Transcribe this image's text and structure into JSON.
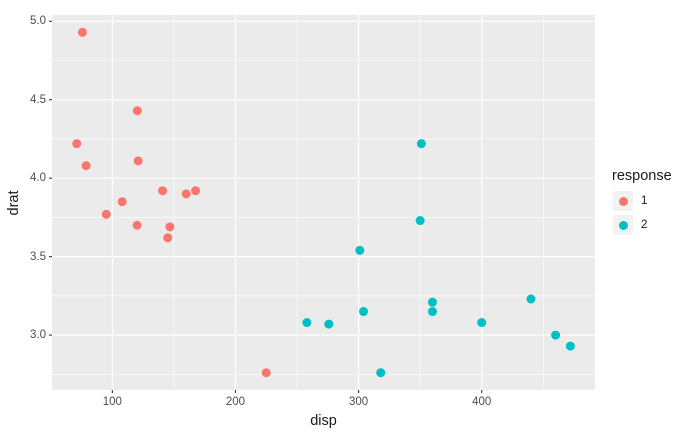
{
  "chart_data": {
    "type": "scatter",
    "title": "",
    "xlabel": "disp",
    "ylabel": "drat",
    "xlim": [
      51,
      492
    ],
    "ylim": [
      2.65,
      5.04
    ],
    "grid": true,
    "x_ticks": [
      {
        "value": 100,
        "label": "100"
      },
      {
        "value": 200,
        "label": "200"
      },
      {
        "value": 300,
        "label": "300"
      },
      {
        "value": 400,
        "label": "400"
      }
    ],
    "y_ticks": [
      {
        "value": 3.0,
        "label": "3.0"
      },
      {
        "value": 3.5,
        "label": "3.5"
      },
      {
        "value": 4.0,
        "label": "4.0"
      },
      {
        "value": 4.5,
        "label": "4.5"
      },
      {
        "value": 5.0,
        "label": "5.0"
      }
    ],
    "x_minor_ticks": [
      150,
      250,
      350,
      450
    ],
    "y_minor_ticks": [
      2.75,
      3.25,
      3.75,
      4.25,
      4.75
    ],
    "legend": {
      "title": "response",
      "position": "right",
      "entries": [
        {
          "label": "1",
          "color": "#F8766D"
        },
        {
          "label": "2",
          "color": "#00BFC4"
        }
      ]
    },
    "series": [
      {
        "name": "1",
        "color": "#F8766D",
        "points": [
          [
            71.1,
            4.22
          ],
          [
            75.7,
            4.93
          ],
          [
            78.7,
            4.08
          ],
          [
            95.1,
            3.77
          ],
          [
            108,
            3.85
          ],
          [
            120.1,
            3.7
          ],
          [
            120.3,
            4.43
          ],
          [
            121,
            4.11
          ],
          [
            140.8,
            3.92
          ],
          [
            145,
            3.62
          ],
          [
            146.7,
            3.69
          ],
          [
            160,
            3.9
          ],
          [
            167.6,
            3.92
          ],
          [
            225,
            2.76
          ]
        ]
      },
      {
        "name": "2",
        "color": "#00BFC4",
        "points": [
          [
            258,
            3.08
          ],
          [
            275.8,
            3.07
          ],
          [
            301,
            3.54
          ],
          [
            304,
            3.15
          ],
          [
            318,
            2.76
          ],
          [
            350,
            3.73
          ],
          [
            351,
            4.22
          ],
          [
            360,
            3.21
          ],
          [
            360,
            3.15
          ],
          [
            400,
            3.08
          ],
          [
            440,
            3.23
          ],
          [
            460,
            3.0
          ],
          [
            472,
            2.93
          ]
        ]
      }
    ]
  },
  "style": {
    "background": "#FFFFFF",
    "panel_bg": "#EBEBEB",
    "grid_color": "#FFFFFF",
    "legend_key_bg": "#F2F2F2",
    "tick_text_color": "#4D4D4D",
    "axis_title_color": "#1A1A1A",
    "tick_mark_color": "#333333",
    "point_radius": 4.5
  }
}
